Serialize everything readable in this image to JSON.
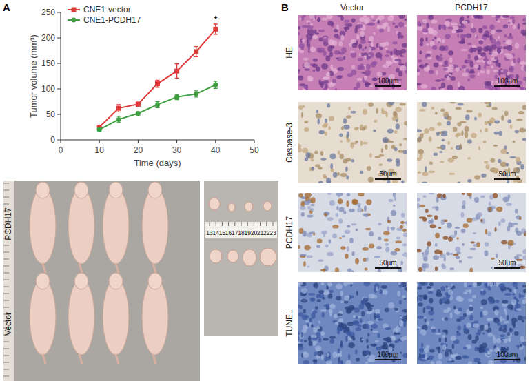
{
  "chart_data": {
    "type": "line",
    "x": [
      10,
      15,
      20,
      25,
      30,
      35,
      40
    ],
    "series": [
      {
        "name": "CNE1-vector",
        "color": "#e03a3a",
        "marker": "square",
        "line_style": "solid",
        "values": [
          25,
          62,
          70,
          110,
          135,
          173,
          217
        ],
        "errors": [
          4,
          7,
          4,
          7,
          14,
          10,
          10
        ]
      },
      {
        "name": "CNE1-PCDH17",
        "color": "#3f9e3f",
        "marker": "circle",
        "line_style": "solid",
        "values": [
          20,
          40,
          52,
          69,
          84,
          90,
          108
        ],
        "errors": [
          3,
          6,
          3,
          6,
          5,
          6,
          7
        ]
      }
    ],
    "xlim": [
      0,
      50
    ],
    "xticks": [
      0,
      10,
      20,
      30,
      40,
      50
    ],
    "ylim": [
      0,
      250
    ],
    "yticks": [
      0,
      50,
      100,
      150,
      200,
      250
    ],
    "xlabel": "Time (days)",
    "ylabel": "Tumor volume (mm³)",
    "legend": "upper left",
    "annotations": [
      {
        "text": "*",
        "x": 40,
        "y": 235
      }
    ]
  },
  "panels": {
    "A": {
      "label": "A",
      "mouse_groups": [
        "PCDH17",
        "Vector"
      ],
      "ruler_labels": [
        13,
        14,
        15,
        16,
        17,
        18,
        19,
        20,
        21,
        22,
        23
      ]
    },
    "B": {
      "label": "B",
      "columns": [
        "Vector",
        "PCDH17"
      ],
      "rows": [
        {
          "name": "HE",
          "scale_bar": "100μm"
        },
        {
          "name": "Caspase-3",
          "scale_bar": "50μm"
        },
        {
          "name": "PCDH17",
          "scale_bar": "50μm"
        },
        {
          "name": "TUNEL",
          "scale_bar": "100μm"
        }
      ]
    }
  }
}
